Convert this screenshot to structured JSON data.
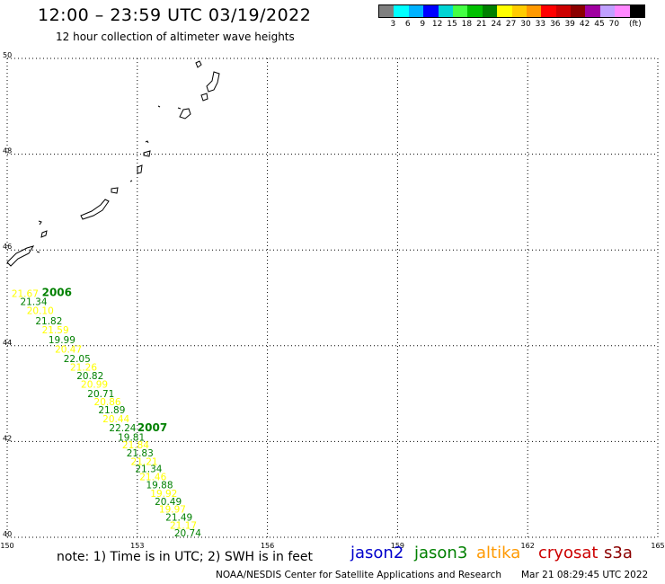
{
  "header": {
    "title": "12:00 – 23:59 UTC 03/19/2022",
    "subtitle": "12 hour collection of altimeter wave heights"
  },
  "legend": {
    "unit": "(ft)",
    "swatches": [
      {
        "color": "#7f7f7f",
        "label": ""
      },
      {
        "color": "#00ffff",
        "label": "3"
      },
      {
        "color": "#00b2ff",
        "label": "6"
      },
      {
        "color": "#0000ff",
        "label": "9"
      },
      {
        "color": "#00d4d4",
        "label": "12"
      },
      {
        "color": "#44ff44",
        "label": "15"
      },
      {
        "color": "#00c000",
        "label": "18"
      },
      {
        "color": "#008000",
        "label": "21"
      },
      {
        "color": "#ffff00",
        "label": "24"
      },
      {
        "color": "#ffcc00",
        "label": "27"
      },
      {
        "color": "#ff9900",
        "label": "30"
      },
      {
        "color": "#ff0000",
        "label": "33"
      },
      {
        "color": "#cc0000",
        "label": "36"
      },
      {
        "color": "#8b0000",
        "label": "39"
      },
      {
        "color": "#a000a0",
        "label": "42"
      },
      {
        "color": "#c0a0ff",
        "label": "45"
      },
      {
        "color": "#ff88ff",
        "label": "70"
      },
      {
        "color": "#000000",
        "label": ""
      }
    ]
  },
  "map": {
    "lat_labels": [
      "50",
      "48",
      "46",
      "44",
      "42",
      "40"
    ],
    "lon_labels": [
      "150",
      "153",
      "156",
      "159",
      "162",
      "165"
    ],
    "lat_range": [
      40,
      50
    ],
    "lon_range": [
      150,
      165
    ],
    "grid": "dotted"
  },
  "tracks": [
    {
      "satellite": "jason3",
      "colors": [
        "#ffff00",
        "#008000"
      ],
      "time_label": "2006",
      "time_label_color": "#008000",
      "time_label_at": [
        150.8,
        45.04
      ],
      "points": [
        {
          "lon": 150.1,
          "lat": 45.02,
          "value": "21.67"
        },
        {
          "lon": 150.3,
          "lat": 44.85,
          "value": "21.34"
        },
        {
          "lon": 150.45,
          "lat": 44.66,
          "value": "20.10"
        },
        {
          "lon": 150.65,
          "lat": 44.45,
          "value": "21.82"
        },
        {
          "lon": 150.8,
          "lat": 44.26,
          "value": "21.59"
        },
        {
          "lon": 150.95,
          "lat": 44.05,
          "value": "19.99"
        },
        {
          "lon": 151.1,
          "lat": 43.86,
          "value": "20.47"
        },
        {
          "lon": 151.3,
          "lat": 43.66,
          "value": "22.05"
        },
        {
          "lon": 151.45,
          "lat": 43.48,
          "value": "21.26"
        },
        {
          "lon": 151.6,
          "lat": 43.3,
          "value": "20.82"
        },
        {
          "lon": 151.7,
          "lat": 43.12,
          "value": "20.99"
        },
        {
          "lon": 151.85,
          "lat": 42.93,
          "value": "20.71"
        },
        {
          "lon": 152.0,
          "lat": 42.76,
          "value": "20.86"
        },
        {
          "lon": 152.1,
          "lat": 42.59,
          "value": "21.89"
        },
        {
          "lon": 152.2,
          "lat": 42.4,
          "value": "20.44"
        },
        {
          "lon": 152.35,
          "lat": 42.21,
          "value": "22.24"
        }
      ]
    },
    {
      "satellite": "jason3",
      "colors": [
        "#008000",
        "#ffff00"
      ],
      "time_label": "2007",
      "time_label_color": "#008000",
      "time_label_at": [
        153.0,
        42.21
      ],
      "points": [
        {
          "lon": 152.55,
          "lat": 42.02,
          "value": "19.81"
        },
        {
          "lon": 152.65,
          "lat": 41.86,
          "value": "21.84"
        },
        {
          "lon": 152.75,
          "lat": 41.69,
          "value": "21.83"
        },
        {
          "lon": 152.85,
          "lat": 41.51,
          "value": "21.21"
        },
        {
          "lon": 152.95,
          "lat": 41.36,
          "value": "21.34"
        },
        {
          "lon": 153.05,
          "lat": 41.19,
          "value": "21.46"
        },
        {
          "lon": 153.2,
          "lat": 41.02,
          "value": "19.88"
        },
        {
          "lon": 153.3,
          "lat": 40.84,
          "value": "19.92"
        },
        {
          "lon": 153.4,
          "lat": 40.68,
          "value": "20.49"
        },
        {
          "lon": 153.5,
          "lat": 40.52,
          "value": "19.97"
        },
        {
          "lon": 153.65,
          "lat": 40.35,
          "value": "21.49"
        },
        {
          "lon": 153.75,
          "lat": 40.18,
          "value": "21.17"
        },
        {
          "lon": 153.85,
          "lat": 40.02,
          "value": "20.74"
        }
      ]
    }
  ],
  "footer": {
    "note": "note:  1) Time is in UTC;  2) SWH is in feet",
    "satellites": [
      {
        "name": "jason2",
        "color": "#0000cc"
      },
      {
        "name": "jason3",
        "color": "#008000"
      },
      {
        "name": "altika",
        "color": "#ff9900"
      },
      {
        "name": "cryosat",
        "color": "#cc0000"
      },
      {
        "name": "s3a",
        "color": "#8b0000"
      }
    ],
    "credit": "NOAA/NESDIS Center for Satellite Applications and Research",
    "timestamp": "Mar 21 08:29:45 UTC 2022"
  }
}
